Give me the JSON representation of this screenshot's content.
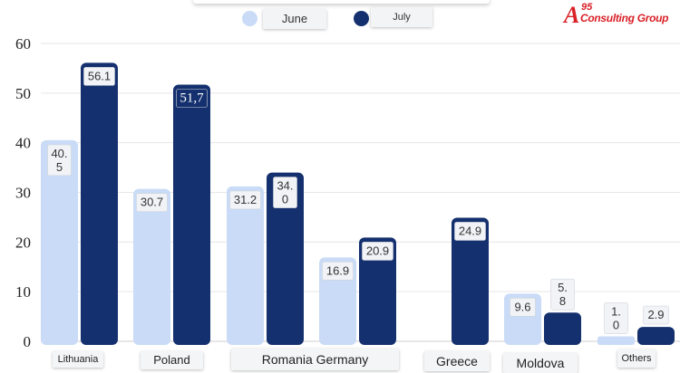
{
  "logo": {
    "mark": "A",
    "superscript": "95",
    "name": "Consulting Group"
  },
  "colors": {
    "june": "#c9dbf6",
    "july": "#15306e",
    "grid": "#e6e6e6"
  },
  "legend": [
    {
      "key": "june",
      "label": "June"
    },
    {
      "key": "july",
      "label": "July"
    }
  ],
  "chart_data": {
    "type": "bar",
    "categories": [
      "Lithuania",
      "Poland",
      "Romania",
      "Germany",
      "Greece",
      "Moldova",
      "Others"
    ],
    "series": [
      {
        "name": "June",
        "values": [
          40.5,
          30.7,
          31.2,
          16.9,
          null,
          9.6,
          1.0
        ]
      },
      {
        "name": "July",
        "values": [
          56.1,
          51.7,
          34.0,
          20.9,
          24.9,
          5.8,
          2.9
        ]
      }
    ],
    "data_labels": {
      "June": [
        "40.\n5",
        "30.7",
        "31.2",
        "16.9",
        "",
        "9.6",
        "1.\n0"
      ],
      "July": [
        "56.1",
        "51,7",
        "34.\n0",
        "20.9",
        "24.9",
        "5.\n8",
        "2.9"
      ]
    },
    "category_labels": [
      {
        "text": "Lithuania"
      },
      {
        "text": "Poland"
      },
      {
        "text": "Romania Germany"
      },
      {
        "text": "Greece"
      },
      {
        "text": "Moldova"
      },
      {
        "text": "Others"
      }
    ],
    "yticks": [
      0,
      10,
      20,
      30,
      40,
      50,
      60
    ],
    "ylim": [
      0,
      60
    ],
    "grid": true,
    "legend_position": "top-center"
  }
}
